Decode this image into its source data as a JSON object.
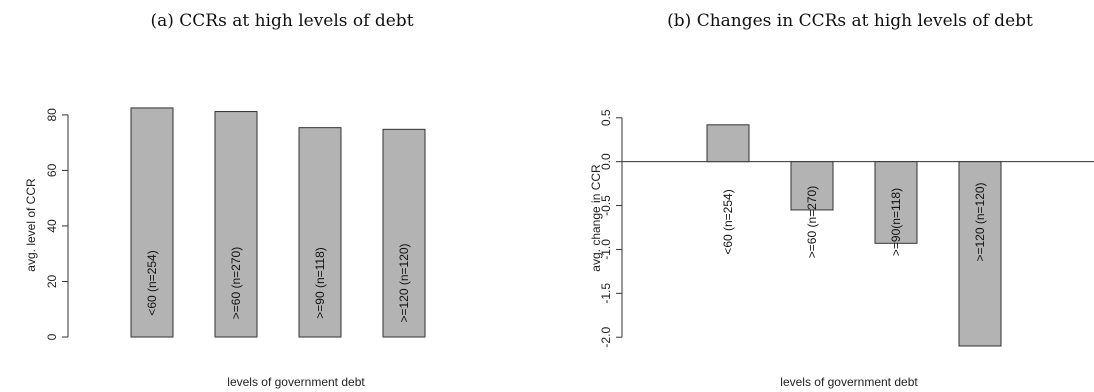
{
  "chart_data": [
    {
      "type": "bar",
      "title": "(a) CCRs at high levels of debt",
      "xlabel": "levels of government debt",
      "ylabel": "avg. level of CCR",
      "categories": [
        "<60 (n=254)",
        ">=60 (n=270)",
        ">=90 (n=118)",
        ">=120 (n=120)"
      ],
      "values": [
        82.5,
        81.2,
        75.4,
        74.8
      ],
      "ylim": [
        0,
        85
      ],
      "yticks": [
        0,
        20,
        40,
        60,
        80
      ],
      "ytick_labels": [
        "0",
        "20",
        "40",
        "60",
        "80"
      ],
      "grid": false
    },
    {
      "type": "bar",
      "title": "(b) Changes in CCRs at high levels of debt",
      "xlabel": "levels of government debt",
      "ylabel": "avg. change in CCR",
      "categories": [
        "<60 (n=254)",
        ">=60 (n=270)",
        ">=90(n=118)",
        ">=120 (n=120)"
      ],
      "values": [
        0.42,
        -0.55,
        -0.93,
        -2.1
      ],
      "ylim": [
        -2.1,
        0.6
      ],
      "yticks": [
        -2.0,
        -1.5,
        -1.0,
        -0.5,
        0.0,
        0.5
      ],
      "ytick_labels": [
        "-2.0",
        "-1.5",
        "-1.0",
        "-0.5",
        "0.0",
        "0.5"
      ],
      "zero_line": true,
      "grid": false
    }
  ]
}
